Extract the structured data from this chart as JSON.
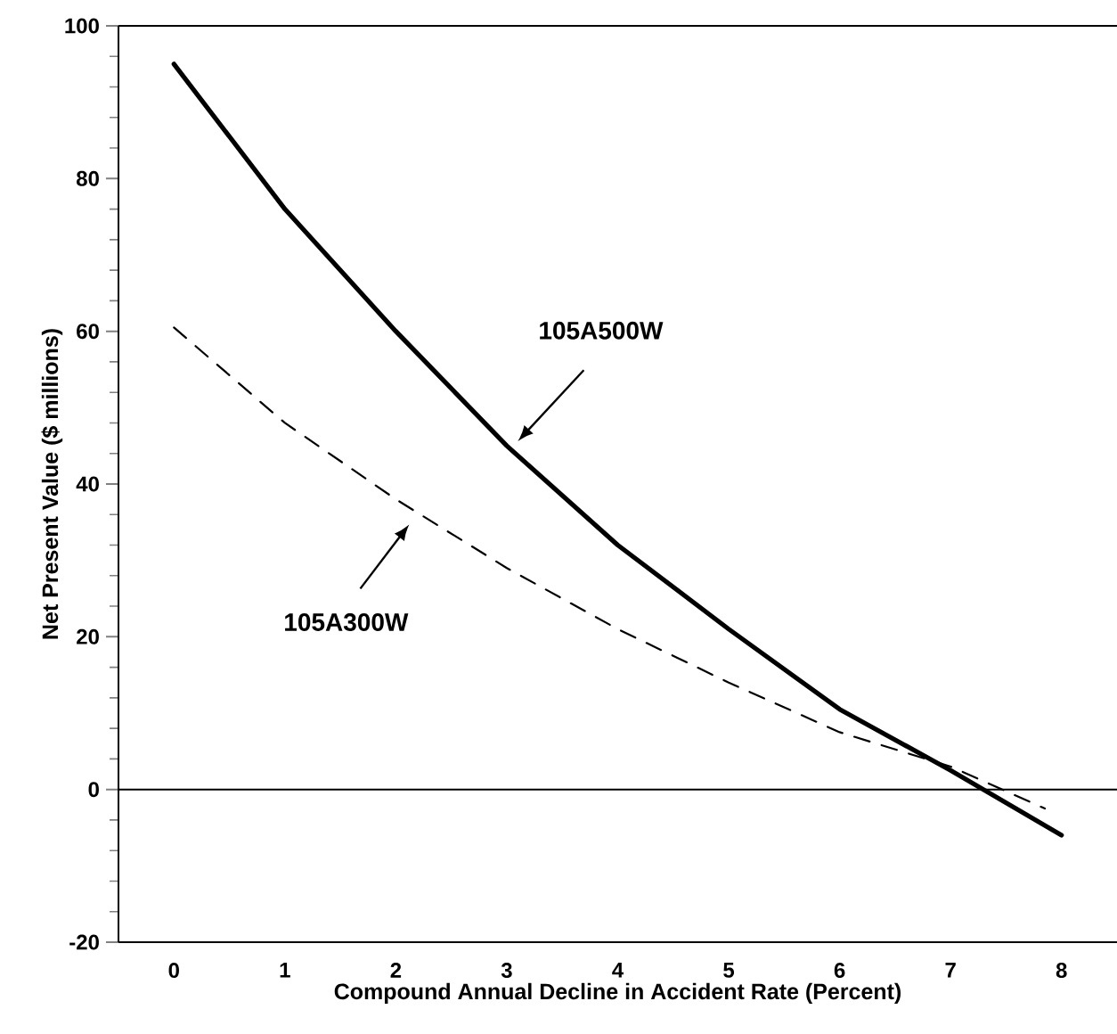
{
  "chart_data": {
    "type": "line",
    "xlabel": "Compound Annual Decline in Accident Rate (Percent)",
    "ylabel": "Net Present Value ($ millions)",
    "x": [
      0,
      1,
      2,
      3,
      4,
      5,
      6,
      7,
      8
    ],
    "series": [
      {
        "color": "#000000",
        "line_style": "solid",
        "values": [
          95,
          76,
          60,
          45,
          32,
          21,
          10.5,
          2.5,
          -6
        ]
      },
      {
        "color": "#000000",
        "line_style": "dashed",
        "x": [
          0,
          1,
          2,
          3,
          4,
          5,
          6,
          7,
          7.85
        ],
        "values": [
          60.5,
          48,
          38,
          29,
          21,
          14,
          7.5,
          3,
          -2.5
        ]
      }
    ],
    "xlim": [
      -0.5,
      8.5
    ],
    "ylim": [
      -20,
      100
    ],
    "xticks": [
      0,
      1,
      2,
      3,
      4,
      5,
      6,
      7,
      8
    ],
    "yticks": [
      -20,
      0,
      20,
      40,
      60,
      80,
      100
    ],
    "ref_lines": [
      {
        "axis": "y",
        "value": 0
      }
    ],
    "annotations": [
      "105A500W",
      "105A300W"
    ],
    "grid": false,
    "marker": "none"
  }
}
